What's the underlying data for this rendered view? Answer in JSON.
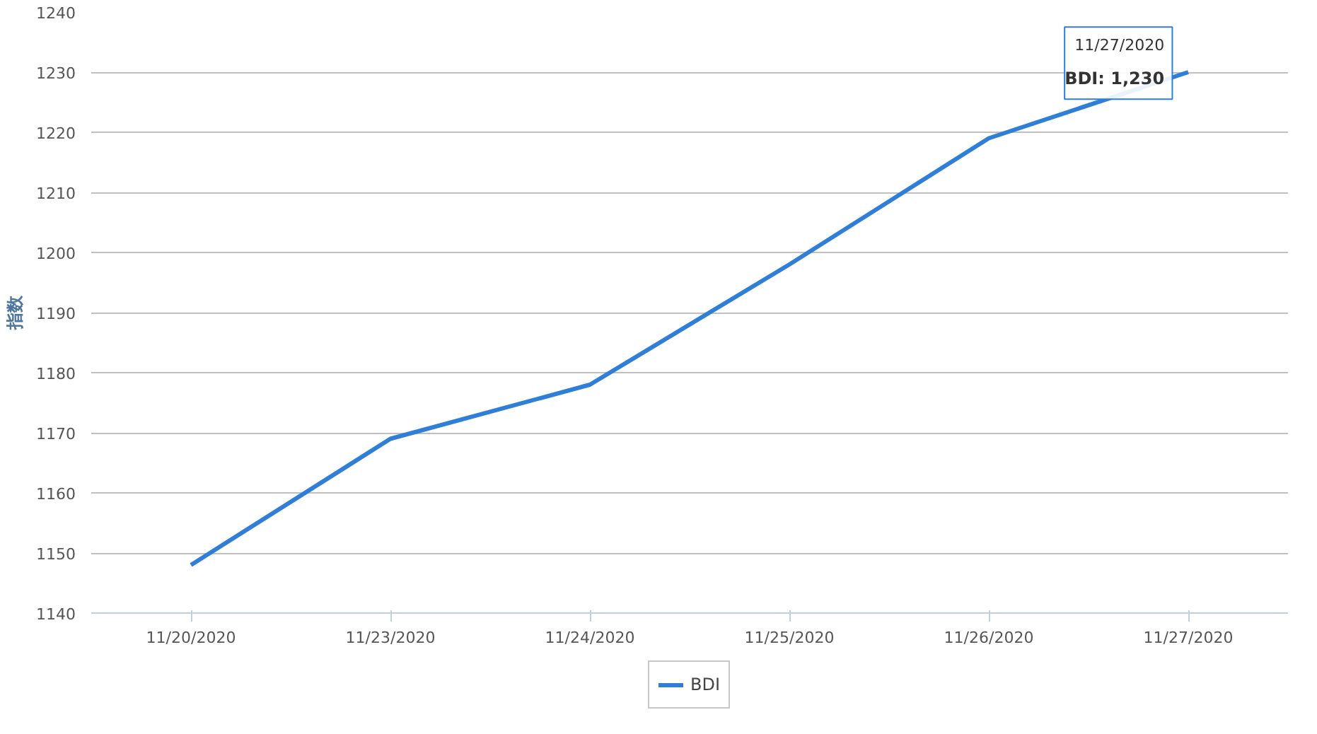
{
  "chart_data": {
    "type": "line",
    "ylabel": "指数",
    "categories": [
      "11/20/2020",
      "11/23/2020",
      "11/24/2020",
      "11/25/2020",
      "11/26/2020",
      "11/27/2020"
    ],
    "series": [
      {
        "name": "BDI",
        "color": "#2f7ed8",
        "values": [
          1148,
          1169,
          1178,
          1198,
          1219,
          1230
        ]
      }
    ],
    "ylim": [
      1140,
      1240
    ],
    "yticks": [
      1140,
      1150,
      1160,
      1170,
      1180,
      1190,
      1200,
      1210,
      1220,
      1230,
      1240
    ],
    "grid": "y",
    "legend": "bottom",
    "line_style": "solid",
    "annotations": [
      {
        "text": "11/27/2020",
        "x": "11/27/2020",
        "y": 1230
      },
      {
        "text": "BDI: 1,230",
        "x": "11/27/2020",
        "y": 1230
      }
    ]
  }
}
